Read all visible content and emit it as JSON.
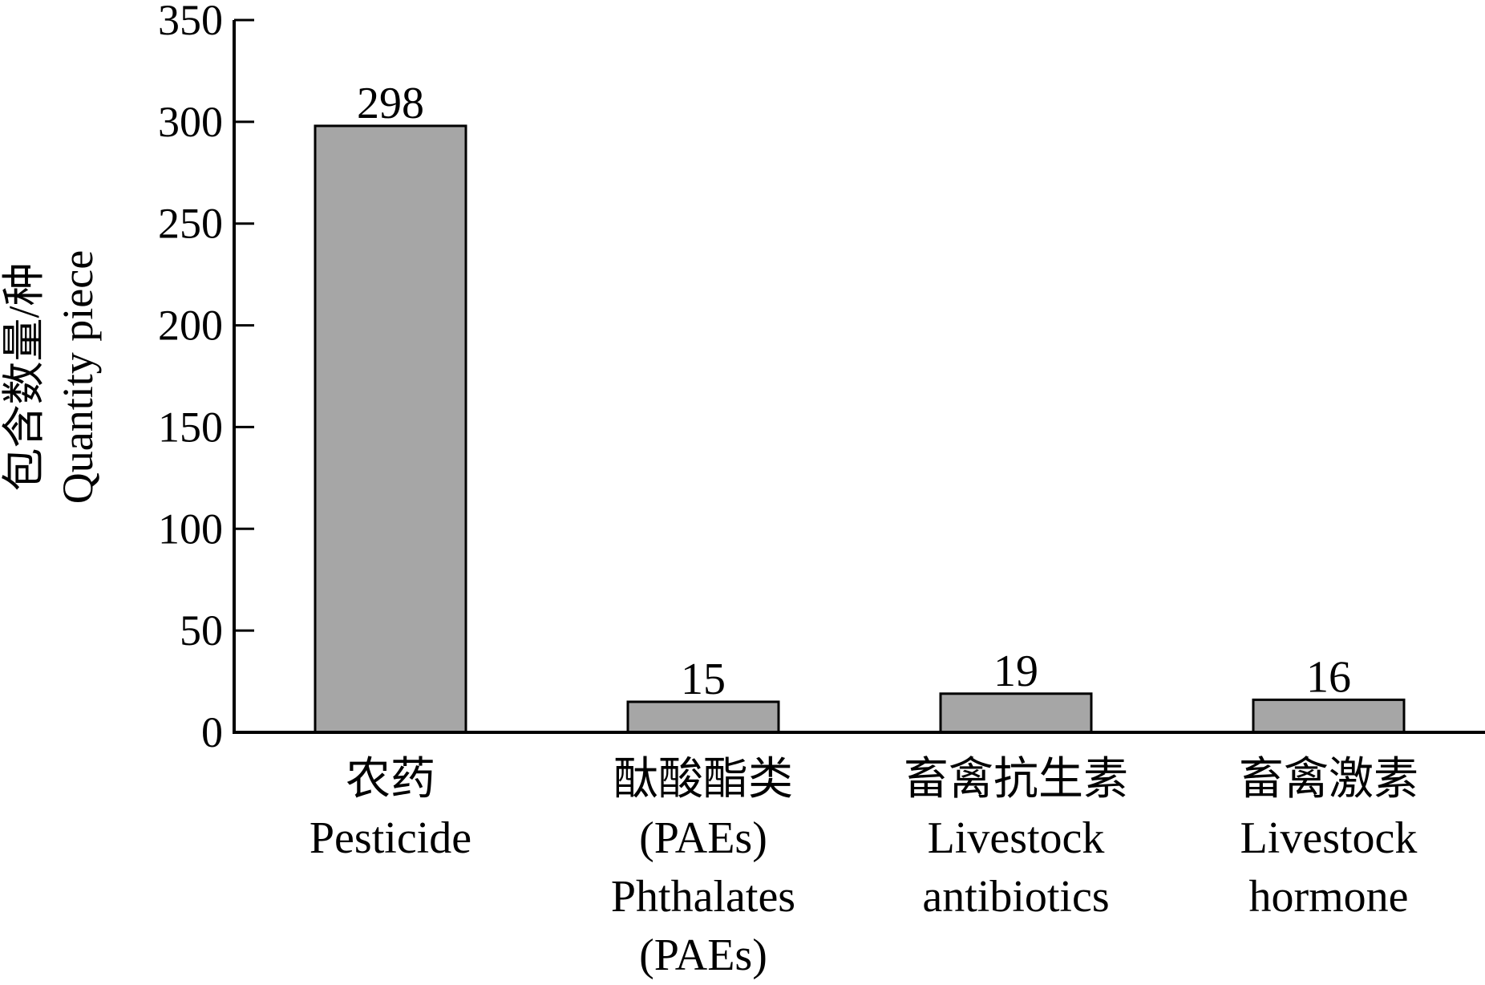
{
  "chart_data": {
    "type": "bar",
    "title": "",
    "ylabel_lines": [
      "包含数量/种",
      "Quantity piece"
    ],
    "xlabel": "",
    "ylim": [
      0,
      350
    ],
    "yticks": [
      0,
      50,
      100,
      150,
      200,
      250,
      300,
      350
    ],
    "categories": [
      {
        "lines": [
          "农药",
          "Pesticide"
        ]
      },
      {
        "lines": [
          "酞酸酯类",
          "(PAEs)",
          "Phthalates",
          "(PAEs)"
        ]
      },
      {
        "lines": [
          "畜禽抗生素",
          "Livestock",
          "antibiotics"
        ]
      },
      {
        "lines": [
          "畜禽激素",
          "Livestock",
          "hormone"
        ]
      }
    ],
    "values": [
      298,
      15,
      19,
      16
    ],
    "data_labels": [
      "298",
      "15",
      "19",
      "16"
    ],
    "bar_color": "#a6a6a6",
    "grid": false,
    "legend": "none"
  }
}
